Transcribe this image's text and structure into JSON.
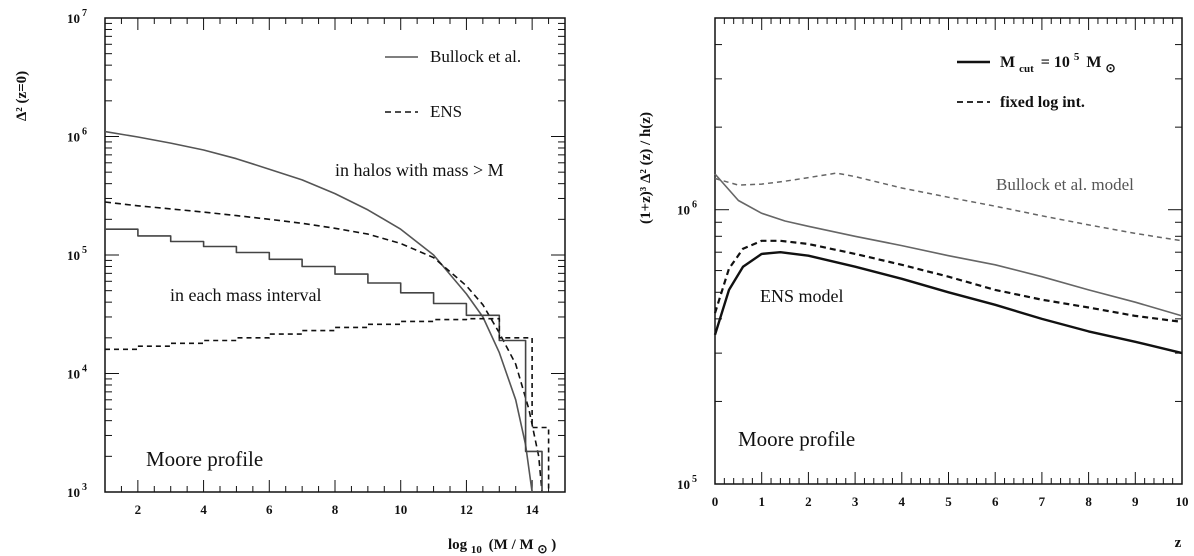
{
  "chart_data": [
    {
      "type": "line",
      "panel": "left",
      "xlabel": "log",
      "xlabel_sub": "10",
      "xlabel_tail": "(M / M",
      "xlabel_sun": "⊙",
      "xlabel_end": ")",
      "ylabel": "Δ² (z=0)",
      "xlim": [
        1,
        15
      ],
      "ylim": [
        1000,
        10000000
      ],
      "yscale": "log",
      "xticks": [
        2,
        4,
        6,
        8,
        10,
        12,
        14
      ],
      "xtick_labels": [
        "2",
        "4",
        "6",
        "8",
        "10",
        "12",
        "14"
      ],
      "ytick_values": [
        1000,
        10000,
        100000,
        1000000,
        10000000
      ],
      "ytick_labels": [
        {
          "base": "10",
          "exp": "3"
        },
        {
          "base": "10",
          "exp": "4"
        },
        {
          "base": "10",
          "exp": "5"
        },
        {
          "base": "10",
          "exp": "6"
        },
        {
          "base": "10",
          "exp": "7"
        }
      ],
      "legend": [
        {
          "label": "Bullock et al.",
          "style": "solid"
        },
        {
          "label": "ENS",
          "style": "dashed"
        }
      ],
      "legend_position": "top-right",
      "annotations": {
        "upper": "in halos with mass > M",
        "lower": "in each mass interval",
        "profile": "Moore profile"
      },
      "series": [
        {
          "name": "Bullock et al.",
          "kind": "cumulative",
          "style": "solid",
          "x": [
            1,
            2,
            3,
            4,
            5,
            6,
            7,
            8,
            9,
            10,
            11,
            12,
            12.5,
            13,
            13.5,
            13.8,
            14.0
          ],
          "y": [
            1100000,
            990000,
            880000,
            770000,
            650000,
            530000,
            430000,
            330000,
            240000,
            165000,
            100000,
            47000,
            30000,
            15000,
            6000,
            2500,
            1000
          ]
        },
        {
          "name": "ENS",
          "kind": "cumulative",
          "style": "dashed",
          "x": [
            1,
            2,
            3,
            4,
            5,
            6,
            7,
            8,
            9,
            10,
            11,
            12,
            12.5,
            13,
            13.5,
            13.9,
            14.2,
            14.3
          ],
          "y": [
            280000,
            260000,
            245000,
            230000,
            215000,
            200000,
            185000,
            168000,
            150000,
            125000,
            95000,
            55000,
            38000,
            22000,
            12000,
            5000,
            2000,
            1000
          ]
        },
        {
          "name": "Bullock et al.",
          "kind": "interval",
          "style": "solid-step",
          "edges": [
            1,
            2,
            3,
            4,
            5,
            6,
            7,
            8,
            9,
            10,
            11,
            12,
            13,
            13.8,
            14.3
          ],
          "values": [
            165000,
            145000,
            130000,
            118000,
            105000,
            92000,
            80000,
            69000,
            58000,
            48000,
            39000,
            31000,
            19000,
            2200
          ]
        },
        {
          "name": "ENS",
          "kind": "interval",
          "style": "dashed-step",
          "edges": [
            1,
            2,
            3,
            4,
            5,
            6,
            7,
            8,
            9,
            10,
            11,
            12,
            13,
            14,
            14.5
          ],
          "values": [
            16000,
            17000,
            18000,
            19000,
            20000,
            21500,
            23000,
            24500,
            26000,
            27500,
            28500,
            29000,
            20000,
            3500
          ]
        }
      ]
    },
    {
      "type": "line",
      "panel": "right",
      "xlabel": "z",
      "ylabel": "(1+z)³ Δ² (z) / h(z)",
      "xlim": [
        0,
        10
      ],
      "ylim": [
        100000,
        5000000
      ],
      "yscale": "log",
      "xticks": [
        0,
        1,
        2,
        3,
        4,
        5,
        6,
        7,
        8,
        9,
        10
      ],
      "xtick_labels": [
        "0",
        "1",
        "2",
        "3",
        "4",
        "5",
        "6",
        "7",
        "8",
        "9",
        "10"
      ],
      "ytick_values": [
        100000,
        1000000
      ],
      "ytick_labels": [
        {
          "base": "10",
          "exp": "5"
        },
        {
          "base": "10",
          "exp": "6"
        }
      ],
      "legend": [
        {
          "label_main": "M",
          "label_sub": "cut",
          "label_mid": "= 10",
          "label_exp": "5",
          "label_m": "M",
          "label_sun": "⊙",
          "style": "solid-bold"
        },
        {
          "label_main": "fixed log int.",
          "style": "dashed"
        }
      ],
      "legend_position": "top-right",
      "annotations": {
        "upper": "Bullock et al. model",
        "lower": "ENS model",
        "profile": "Moore profile"
      },
      "series": [
        {
          "name": "Bullock et al. model",
          "cut": "M_cut",
          "style": "solid-gray",
          "x": [
            0,
            0.5,
            1,
            1.5,
            2,
            3,
            4,
            5,
            6,
            7,
            8,
            9,
            10
          ],
          "y": [
            1350000,
            1080000,
            970000,
            910000,
            870000,
            800000,
            740000,
            680000,
            630000,
            570000,
            510000,
            460000,
            410000
          ]
        },
        {
          "name": "Bullock et al. model",
          "cut": "fixed log int.",
          "style": "dashed-gray",
          "x": [
            0,
            0.5,
            1,
            1.5,
            2,
            2.6,
            3,
            4,
            5,
            6,
            7,
            8,
            9,
            10
          ],
          "y": [
            1300000,
            1230000,
            1240000,
            1270000,
            1310000,
            1360000,
            1320000,
            1200000,
            1110000,
            1030000,
            950000,
            880000,
            820000,
            770000
          ]
        },
        {
          "name": "ENS model",
          "cut": "M_cut",
          "style": "solid-bold",
          "x": [
            0,
            0.3,
            0.6,
            1,
            1.4,
            2,
            3,
            4,
            5,
            6,
            7,
            8,
            9,
            10
          ],
          "y": [
            350000,
            510000,
            620000,
            690000,
            700000,
            680000,
            620000,
            560000,
            500000,
            450000,
            400000,
            360000,
            330000,
            300000
          ]
        },
        {
          "name": "ENS model",
          "cut": "fixed log int.",
          "style": "dashed-bold",
          "x": [
            0,
            0.3,
            0.6,
            1,
            1.4,
            2,
            3,
            4,
            5,
            6,
            7,
            8,
            9,
            10
          ],
          "y": [
            420000,
            610000,
            720000,
            770000,
            770000,
            750000,
            690000,
            630000,
            570000,
            510000,
            470000,
            440000,
            410000,
            390000
          ]
        }
      ]
    }
  ],
  "colors": {
    "dark": "#111111",
    "gray": "#555555"
  }
}
